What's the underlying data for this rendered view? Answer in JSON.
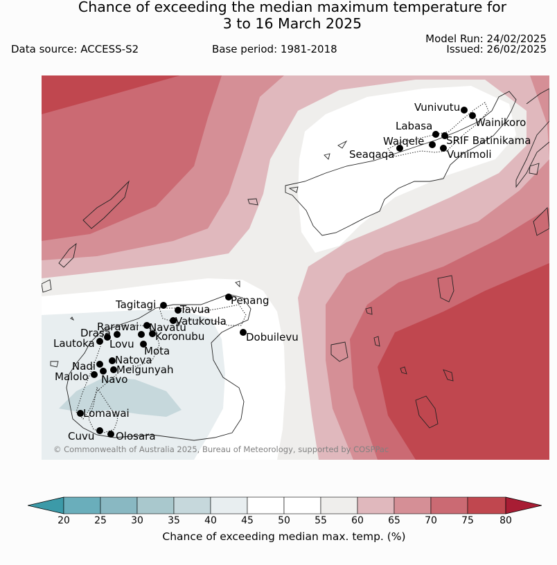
{
  "title_line1": "Chance of exceeding the median maximum temperature for",
  "title_line2": "3 to 16 March 2025",
  "data_source": "Data source: ACCESS-S2",
  "base_period": "Base period: 1981-2018",
  "model_run": "Model Run: 24/02/2025",
  "issued": "Issued: 26/02/2025",
  "copyright": "© Commonwealth of Australia 2025, Bureau of Meteorology, supported by COSPPac",
  "colorbar": {
    "label": "Chance of exceeding median max. temp. (%)",
    "ticks": [
      "20",
      "25",
      "30",
      "35",
      "40",
      "45",
      "50",
      "55",
      "60",
      "65",
      "70",
      "75",
      "80"
    ],
    "colors": [
      "#6aaebb",
      "#89b8c2",
      "#a9c8cd",
      "#c6d8dc",
      "#e8eef0",
      "#ffffff",
      "#ffffff",
      "#efeeec",
      "#e0b8bd",
      "#d58f96",
      "#cb6a73",
      "#c0474f"
    ],
    "extend_low": "#3c9aa8",
    "extend_high": "#a81d34"
  },
  "stations": [
    {
      "name": "Vunivutu"
    },
    {
      "name": "Wainikoro"
    },
    {
      "name": "Labasa"
    },
    {
      "name": "Waiqele"
    },
    {
      "name": "SRIF Batinikama"
    },
    {
      "name": "Seaqaqa"
    },
    {
      "name": "Vunimoli"
    },
    {
      "name": "Tagitagi"
    },
    {
      "name": "Tavua"
    },
    {
      "name": "Penang"
    },
    {
      "name": "Vatukoula"
    },
    {
      "name": "Rarawai"
    },
    {
      "name": "Navatu"
    },
    {
      "name": "Drasa"
    },
    {
      "name": "Koronubu"
    },
    {
      "name": "Lautoka"
    },
    {
      "name": "Lovu"
    },
    {
      "name": "Dobuilevu"
    },
    {
      "name": "Mota"
    },
    {
      "name": "Natova"
    },
    {
      "name": "Nadi"
    },
    {
      "name": "Meigunyah"
    },
    {
      "name": "Malolo"
    },
    {
      "name": "Navo"
    },
    {
      "name": "Lomawai"
    },
    {
      "name": "Cuvu"
    },
    {
      "name": "Olosara"
    }
  ]
}
